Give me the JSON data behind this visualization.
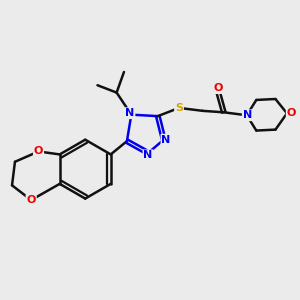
{
  "bg_color": "#ebebeb",
  "atom_color_N": "#0000ee",
  "atom_color_O": "#ee0000",
  "atom_color_S": "#ccaa00",
  "bond_color": "#111111",
  "bond_width": 1.8,
  "fig_size": [
    3.0,
    3.0
  ],
  "dpi": 100,
  "xlim": [
    0,
    10
  ],
  "ylim": [
    0,
    10
  ]
}
